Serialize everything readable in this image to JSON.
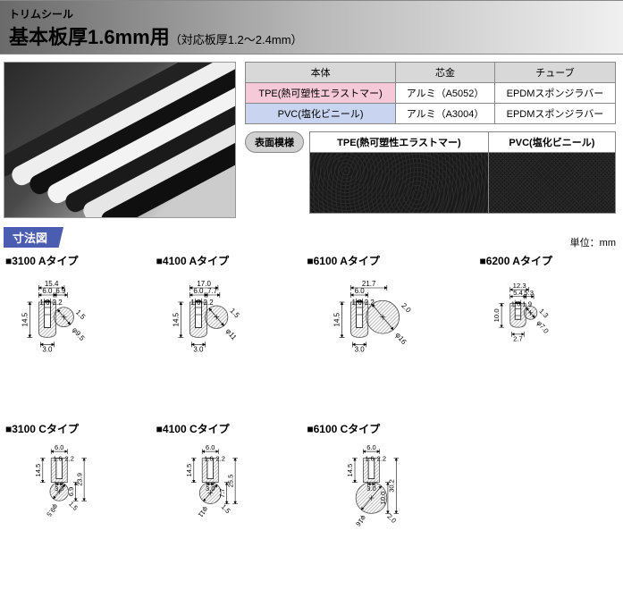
{
  "header": {
    "category": "トリムシール",
    "title": "基本板厚1.6mm用",
    "subtitle": "（対応板厚1.2〜2.4mm）"
  },
  "spec_table": {
    "headers": [
      "本体",
      "芯金",
      "チューブ"
    ],
    "rows": [
      {
        "body": "TPE(熱可塑性エラストマー)",
        "core": "アルミ（A5052）",
        "tube": "EPDMスポンジラバー",
        "body_class": "pink"
      },
      {
        "body": "PVC(塩化ビニール)",
        "core": "アルミ（A3004）",
        "tube": "EPDMスポンジラバー",
        "body_class": "blue"
      }
    ]
  },
  "surface": {
    "label": "表面模様",
    "headers": [
      {
        "text": "TPE(熱可塑性エラストマー)",
        "class": "pink"
      },
      {
        "text": "PVC(塩化ビニール)",
        "class": "blue"
      }
    ]
  },
  "dim_section": {
    "heading": "寸法図",
    "unit": "単位：mm"
  },
  "diagrams": [
    {
      "title": "3100 Aタイプ",
      "layout": "side",
      "dims": {
        "total_w": "15.4",
        "section_w": "6.0",
        "inner_w": "6.9",
        "slot_w": "1.6",
        "slot_gap": "2.2",
        "height": "14.5",
        "tube_d": "φ9.5",
        "base_w": "3.0",
        "wall": "1.5"
      }
    },
    {
      "title": "4100 Aタイプ",
      "layout": "side",
      "dims": {
        "total_w": "17.0",
        "section_w": "6.0",
        "inner_w": "7.7",
        "slot_w": "1.6",
        "slot_gap": "2.2",
        "height": "14.5",
        "tube_d": "φ11",
        "base_w": "3.0",
        "wall": "1.5"
      }
    },
    {
      "title": "6100 Aタイプ",
      "layout": "side",
      "dims": {
        "total_w": "21.7",
        "section_w": "6.0",
        "slot_w": "1.6",
        "slot_gap": "2.2",
        "height": "14.5",
        "tube_d": "φ16",
        "base_w": "3.0",
        "wall": "2.0"
      }
    },
    {
      "title": "6200 Aタイプ",
      "layout": "side_small",
      "dims": {
        "total_w": "12.3",
        "section_w": "5.4",
        "inner_w": "5.3",
        "slot_w": "1.6",
        "slot_gap": "1.9",
        "height": "10.0",
        "tube_d": "φ7.0",
        "base_w": "2.7",
        "wall": "1.3"
      }
    },
    {
      "title": "3100 Cタイプ",
      "layout": "bottom",
      "dims": {
        "section_w": "6.0",
        "slot_w": "1.6",
        "slot_gap": "2.2",
        "height": "14.5",
        "tube_d": "φ9.5",
        "total_h": "23.9",
        "base_w": "3.0",
        "inner_h": "6.9",
        "wall": "1.5"
      }
    },
    {
      "title": "4100 Cタイプ",
      "layout": "bottom",
      "dims": {
        "section_w": "6.0",
        "slot_w": "1.6",
        "slot_gap": "2.2",
        "height": "14.5",
        "tube_d": "φ11",
        "total_h": "25.5",
        "base_w": "3.0",
        "inner_h": "7.7",
        "wall": "1.5"
      }
    },
    {
      "title": "6100 Cタイプ",
      "layout": "bottom",
      "dims": {
        "section_w": "6.0",
        "slot_w": "1.6",
        "slot_gap": "2.2",
        "height": "14.5",
        "tube_d": "φ16",
        "total_h": "30.2",
        "base_w": "3.0",
        "inner_h": "10.0",
        "wall": "2.0"
      }
    }
  ],
  "colors": {
    "header_grad_from": "#6a6a6a",
    "header_grad_to": "#f0f0f0",
    "dim_header_bg": "#4a5db0",
    "pink": "#f5c9d8",
    "blue": "#c9d5f0",
    "grey_header": "#d8d8d8"
  }
}
